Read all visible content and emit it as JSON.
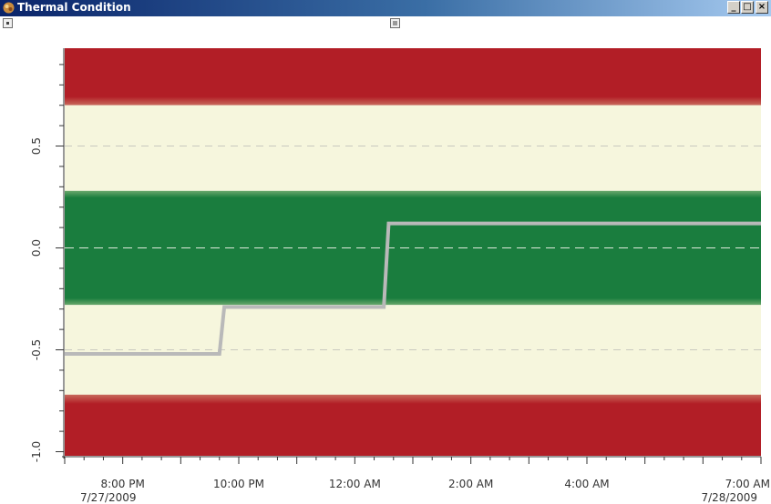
{
  "window": {
    "title": "Thermal Condition",
    "controls": {
      "minimize": "_",
      "maximize": "□",
      "close": "×"
    }
  },
  "colors": {
    "title_bar_start": "#0a246a",
    "title_bar_end": "#a6caf0",
    "danger_zone": "#b21e26",
    "caution_zone": "#f6f6dd",
    "normal_zone": "#1a7d3e",
    "series_line": "#b9b9b9"
  },
  "chart_data": {
    "type": "line",
    "title": "",
    "xlabel": "",
    "ylabel": "",
    "ylim": [
      -1.02,
      0.98
    ],
    "y_ticks": [
      {
        "value": 0.5,
        "label": "0.5"
      },
      {
        "value": 0.0,
        "label": "0.0"
      },
      {
        "value": -0.5,
        "label": "-0.5"
      },
      {
        "value": -1.0,
        "label": "-1.0"
      }
    ],
    "x_axis": {
      "start": "7/27/2009 7:00 PM",
      "end": "7/28/2009 7:00 AM",
      "start_date_label": "7/27/2009",
      "end_date_label": "7/28/2009",
      "tick_labels": [
        "8:00 PM",
        "10:00 PM",
        "12:00 AM",
        "2:00 AM",
        "4:00 AM",
        "7:00 AM"
      ]
    },
    "bands": [
      {
        "name": "danger-high",
        "from": 0.7,
        "to": 0.98,
        "color": "#b21e26"
      },
      {
        "name": "caution-high",
        "from": 0.28,
        "to": 0.7,
        "color": "#f6f6dd"
      },
      {
        "name": "normal",
        "from": -0.28,
        "to": 0.28,
        "color": "#1a7d3e"
      },
      {
        "name": "caution-low",
        "from": -0.72,
        "to": -0.28,
        "color": "#f6f6dd"
      },
      {
        "name": "danger-low",
        "from": -1.02,
        "to": -0.72,
        "color": "#b21e26"
      }
    ],
    "grid": {
      "horizontal_dashed": [
        0.5,
        0.0,
        -0.5
      ]
    },
    "series": [
      {
        "x": [
          "7/27/2009 7:00 PM",
          "7/27/2009 9:40 PM",
          "7/27/2009 9:45 PM",
          "7/28/2009 12:30 AM",
          "7/28/2009 12:35 AM",
          "7/28/2009 7:00 AM"
        ],
        "values": [
          -0.52,
          -0.52,
          -0.29,
          -0.29,
          0.12,
          0.12
        ]
      }
    ]
  }
}
